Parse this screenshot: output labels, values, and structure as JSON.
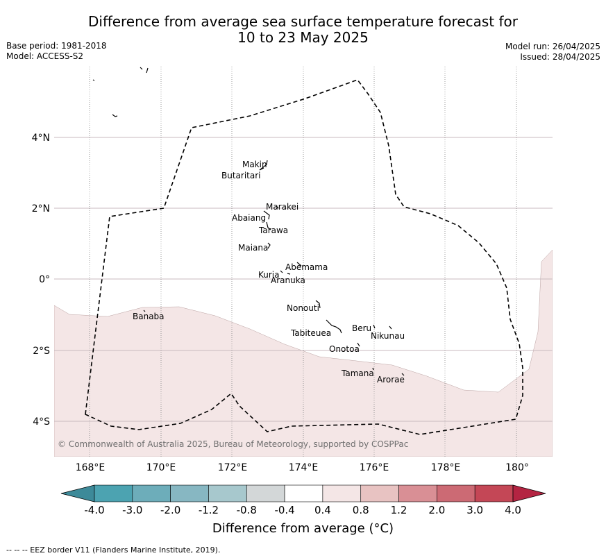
{
  "header": {
    "title_line1": "Difference from average sea surface temperature forecast for",
    "title_line2": "10 to 23 May 2025",
    "base_period": "Base period: 1981-2018",
    "model": "Model: ACCESS-S2",
    "model_run": "Model run: 26/04/2025",
    "issued": "Issued: 28/04/2025"
  },
  "map": {
    "lon_labels": [
      "168°E",
      "170°E",
      "172°E",
      "174°E",
      "176°E",
      "178°E",
      "180°"
    ],
    "lat_labels": [
      "4°N",
      "2°N",
      "0°",
      "2°S",
      "4°S"
    ],
    "copyright": "© Commonwealth of Australia 2025, Bureau of Meteorology, supported by COSPPac",
    "anomaly_fill_color": "#f4e6e6",
    "islands": [
      {
        "name": "Makin"
      },
      {
        "name": "Butaritari"
      },
      {
        "name": "Marakei"
      },
      {
        "name": "Abaiang"
      },
      {
        "name": "Tarawa"
      },
      {
        "name": "Maiana"
      },
      {
        "name": "Abemama"
      },
      {
        "name": "Kuria"
      },
      {
        "name": "Aranuka"
      },
      {
        "name": "Nonouti"
      },
      {
        "name": "Banaba"
      },
      {
        "name": "Beru"
      },
      {
        "name": "Tabiteuea"
      },
      {
        "name": "Nikunau"
      },
      {
        "name": "Onotoa"
      },
      {
        "name": "Tamana"
      },
      {
        "name": "Arorae"
      }
    ]
  },
  "colorbar": {
    "ticks": [
      "-4.0",
      "-3.0",
      "-2.0",
      "-1.2",
      "-0.8",
      "-0.4",
      "0.4",
      "0.8",
      "1.2",
      "2.0",
      "3.0",
      "4.0"
    ],
    "colors": [
      "#3d8a99",
      "#4ca3b1",
      "#6dadba",
      "#87b7c2",
      "#a7c8cd",
      "#d3d7d8",
      "#ffffff",
      "#f4e6e6",
      "#e8c3c2",
      "#d98f95",
      "#cc6a74",
      "#c44756",
      "#b42442"
    ],
    "label": "Difference from average (°C)"
  },
  "footer": {
    "eez_note": "--  --  -- EEZ border V11 (Flanders Marine Institute, 2019)."
  }
}
